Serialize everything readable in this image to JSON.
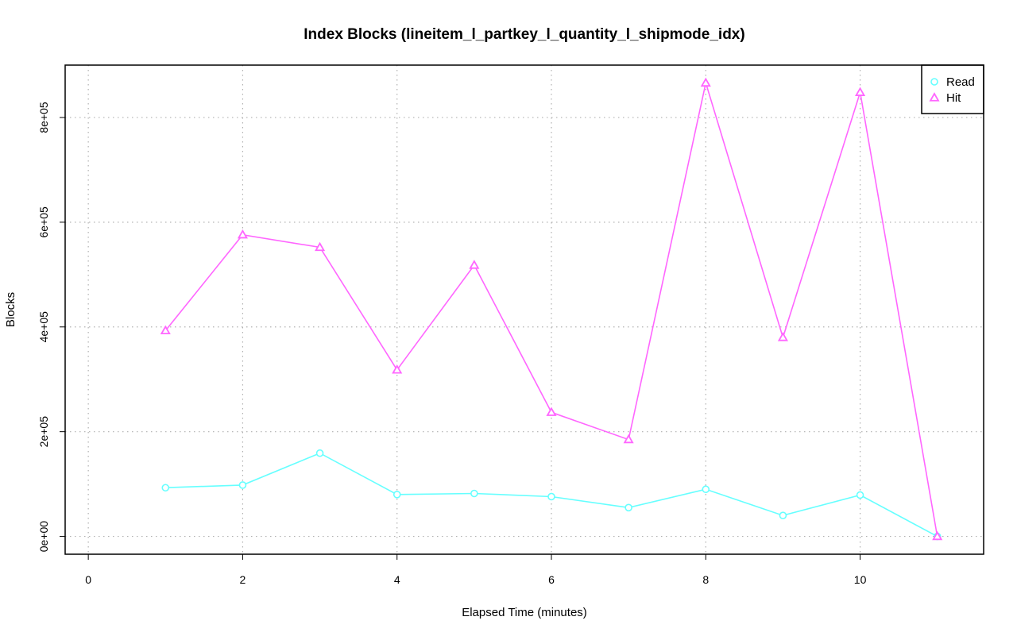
{
  "chart_data": {
    "type": "line",
    "title": "Index Blocks (lineitem_l_partkey_l_quantity_l_shipmode_idx)",
    "xlabel": "Elapsed Time (minutes)",
    "ylabel": "Blocks",
    "xlim": [
      -0.3,
      11.6
    ],
    "ylim": [
      -34000,
      900000
    ],
    "x_ticks": [
      0,
      2,
      4,
      6,
      8,
      10
    ],
    "x_tick_labels": [
      "0",
      "2",
      "4",
      "6",
      "8",
      "10"
    ],
    "y_ticks": [
      0,
      200000,
      400000,
      600000,
      800000
    ],
    "y_tick_labels": [
      "0e+00",
      "2e+05",
      "4e+05",
      "6e+05",
      "8e+05"
    ],
    "grid": true,
    "legend_position": "top-right",
    "x": [
      1,
      2,
      3,
      4,
      5,
      6,
      7,
      8,
      9,
      10,
      11
    ],
    "series": [
      {
        "name": "Read",
        "color": "#66ffff",
        "marker": "circle",
        "values": [
          93000,
          98000,
          159000,
          80000,
          82000,
          76000,
          55000,
          90000,
          40000,
          79000,
          0
        ]
      },
      {
        "name": "Hit",
        "color": "#ff66ff",
        "marker": "triangle",
        "values": [
          393000,
          576000,
          552000,
          318000,
          518000,
          237000,
          185000,
          866000,
          380000,
          848000,
          0
        ]
      }
    ]
  }
}
